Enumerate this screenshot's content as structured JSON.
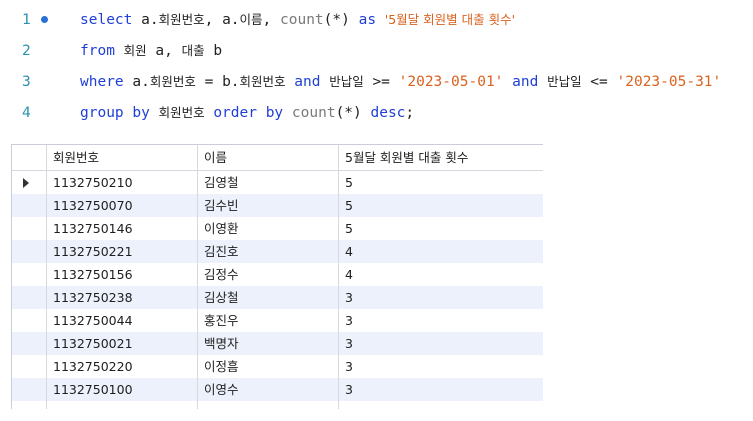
{
  "editor": {
    "lines": [
      {
        "num": "1",
        "tokens": [
          {
            "t": "select ",
            "c": "kw"
          },
          {
            "t": "a.",
            "c": "id"
          },
          {
            "t": "회원번호",
            "c": "id ko"
          },
          {
            "t": ", ",
            "c": "id"
          },
          {
            "t": "a.",
            "c": "id"
          },
          {
            "t": "이름",
            "c": "id ko"
          },
          {
            "t": ", ",
            "c": "id"
          },
          {
            "t": "count",
            "c": "fn"
          },
          {
            "t": "(*) ",
            "c": "id"
          },
          {
            "t": "as ",
            "c": "kw"
          },
          {
            "t": "'5월달 회원별 대출 횟수'",
            "c": "str ko"
          }
        ]
      },
      {
        "num": "2",
        "tokens": [
          {
            "t": "from ",
            "c": "kw"
          },
          {
            "t": "회원",
            "c": "id ko"
          },
          {
            "t": " a, ",
            "c": "id"
          },
          {
            "t": "대출",
            "c": "id ko"
          },
          {
            "t": " b",
            "c": "id"
          }
        ]
      },
      {
        "num": "3",
        "tokens": [
          {
            "t": "where ",
            "c": "kw"
          },
          {
            "t": "a.",
            "c": "id"
          },
          {
            "t": "회원번호",
            "c": "id ko"
          },
          {
            "t": " = b.",
            "c": "id"
          },
          {
            "t": "회원번호",
            "c": "id ko"
          },
          {
            "t": " and ",
            "c": "kw"
          },
          {
            "t": "반납일",
            "c": "id ko"
          },
          {
            "t": " >= ",
            "c": "id"
          },
          {
            "t": "'2023-05-01'",
            "c": "str"
          },
          {
            "t": " and ",
            "c": "kw"
          },
          {
            "t": "반납일",
            "c": "id ko"
          },
          {
            "t": " <= ",
            "c": "id"
          },
          {
            "t": "'2023-05-31'",
            "c": "str"
          }
        ]
      },
      {
        "num": "4",
        "tokens": [
          {
            "t": "group by ",
            "c": "kw"
          },
          {
            "t": "회원번호",
            "c": "id ko"
          },
          {
            "t": " order by ",
            "c": "kw"
          },
          {
            "t": "count",
            "c": "fn"
          },
          {
            "t": "(*) ",
            "c": "id"
          },
          {
            "t": "desc",
            "c": "kw"
          },
          {
            "t": ";",
            "c": "id"
          }
        ]
      }
    ]
  },
  "grid": {
    "columns": [
      "회원번호",
      "이름",
      "5월달 회원별 대출 횟수"
    ],
    "rows": [
      [
        "1132750210",
        "김영철",
        "5"
      ],
      [
        "1132750070",
        "김수빈",
        "5"
      ],
      [
        "1132750146",
        "이영환",
        "5"
      ],
      [
        "1132750221",
        "김진호",
        "4"
      ],
      [
        "1132750156",
        "김정수",
        "4"
      ],
      [
        "1132750238",
        "김상철",
        "3"
      ],
      [
        "1132750044",
        "홍진우",
        "3"
      ],
      [
        "1132750021",
        "백명자",
        "3"
      ],
      [
        "1132750220",
        "이정흠",
        "3"
      ],
      [
        "1132750100",
        "이영수",
        "3"
      ]
    ],
    "current_row": 0
  }
}
